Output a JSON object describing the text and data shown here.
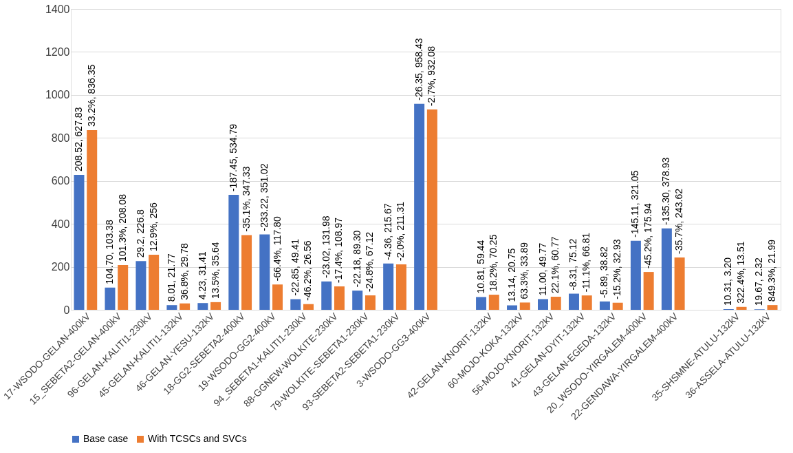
{
  "chart_data": {
    "type": "bar",
    "categories": [
      "17-WSODO-GELAN-400kV",
      "15_SEBETA2-GELAN-400kV",
      "96-GELAN-KALITI1-230kV",
      "45-GELAN-KALITI1-132kV",
      "46-GELAN-YESU-132kV",
      "18-GG2-SEBETA2-400kV",
      "19-WSODO-GG2-400kV",
      "94_SEBETA1-KALITI1-230kV",
      "88-GGNEW-WOLKITE-230kV",
      "79-WOLKITE-SEBETA1-230kV",
      "93-SEBETA2-SEBETA1-230kV",
      "3-WSODO-GG3-400kV",
      null,
      "42-GELAN-KNORIT-132kV",
      "60-MOJO-KOKA-132kV",
      "56-MOJO-KNORIT-132kV",
      "41-GELAN-DYIT-132kV",
      "43-GELAN-EGEDA-132kV",
      "20_WSODO-YIRGALEM-400kV",
      "22-GENDAWA-YIRGALEM-400kV",
      null,
      "35-SHSMNE-ATULU-132kV",
      "36-ASSELA-ATULU-132kV"
    ],
    "series": [
      {
        "name": "Base case",
        "color": "#4472c4",
        "values": [
          627.83,
          103.38,
          226.8,
          21.77,
          31.41,
          534.79,
          351.02,
          49.41,
          131.98,
          89.3,
          215.67,
          958.43,
          null,
          59.44,
          20.75,
          49.77,
          75.12,
          38.82,
          321.05,
          378.93,
          null,
          3.2,
          2.32
        ],
        "value_labels": [
          "208.52, 627.83",
          "104.70, 103.38",
          "29.2, 226.8",
          "8.01, 21.77",
          "4.23, 31.41",
          "-187.45, 534.79",
          "-233.22, 351.02",
          "-22.85, 49.41",
          "-23.02, 131.98",
          "-22.18, 89.30",
          "-4.36, 215.67",
          "-26.35, 958.43",
          null,
          "10.81, 59.44",
          "13.14, 20.75",
          "11.00, 49.77",
          "-8.31, 75.12",
          "-5.89, 38.82",
          "-145.11, 321.05",
          "-135.30, 378.93",
          null,
          "10.31, 3.20",
          "19.67, 2.32"
        ]
      },
      {
        "name": "With TCSCs and SVCs",
        "color": "#ed7d31",
        "values": [
          836.35,
          208.08,
          256,
          29.78,
          35.64,
          347.33,
          117.8,
          26.56,
          108.97,
          67.12,
          211.31,
          932.08,
          null,
          70.25,
          33.89,
          60.77,
          66.81,
          32.93,
          175.94,
          243.62,
          null,
          13.51,
          21.99
        ],
        "value_labels": [
          "33.2%, 836.35",
          "101.3%, 208.08",
          "12.9%, 256",
          "36.8%, 29.78",
          "13.5%, 35.64",
          "-35.1%, 347.33",
          "-66.4%, 117.80",
          "-46.2%, 26.56",
          "-17.4%, 108.97",
          "-24.8%, 67.12",
          "-2.0%, 211.31",
          "-2.7%, 932.08",
          null,
          "18.2%, 70.25",
          "63.3%, 33.89",
          "22.1%, 60.77",
          "-11.1%, 66.81",
          "-15.2%, 32.93",
          "-45.2%, 175.94",
          "-35.7%, 243.62",
          null,
          "322.4%, 13.51",
          "849.3%, 21.99"
        ]
      }
    ],
    "ylim": [
      0,
      1400
    ],
    "yticks": [
      0,
      200,
      400,
      600,
      800,
      1000,
      1200,
      1400
    ],
    "grid": "y",
    "legend": "bottom"
  }
}
